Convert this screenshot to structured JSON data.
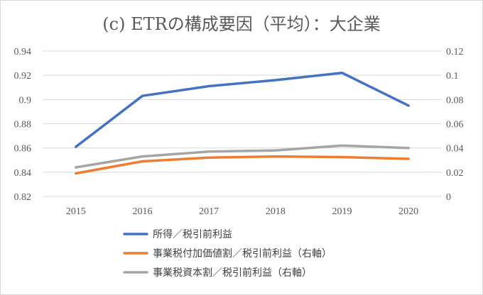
{
  "chart_data": {
    "type": "line",
    "title": "(c) ETRの構成要因（平均）：大企業",
    "categories": [
      "2015",
      "2016",
      "2017",
      "2018",
      "2019",
      "2020"
    ],
    "y_left": {
      "range": [
        0.82,
        0.94
      ],
      "ticks": [
        "0.82",
        "0.84",
        "0.86",
        "0.88",
        "0.9",
        "0.92",
        "0.94"
      ]
    },
    "y_right": {
      "range": [
        0,
        0.12
      ],
      "ticks": [
        "0",
        "0.02",
        "0.04",
        "0.06",
        "0.08",
        "0.1",
        "0.12"
      ]
    },
    "grid": true,
    "legend_position": "bottom",
    "series": [
      {
        "name": "所得／税引前利益",
        "axis": "left",
        "color": "#4472C4",
        "values": [
          0.861,
          0.903,
          0.911,
          0.916,
          0.922,
          0.895
        ]
      },
      {
        "name": "事業税付加価値割／税引前利益（右軸）",
        "axis": "right",
        "color": "#ED7D31",
        "values": [
          0.019,
          0.029,
          0.032,
          0.033,
          0.0325,
          0.031
        ]
      },
      {
        "name": "事業税資本割／税引前利益（右軸）",
        "axis": "right",
        "color": "#A5A5A5",
        "values": [
          0.024,
          0.033,
          0.037,
          0.038,
          0.042,
          0.04
        ]
      }
    ]
  }
}
